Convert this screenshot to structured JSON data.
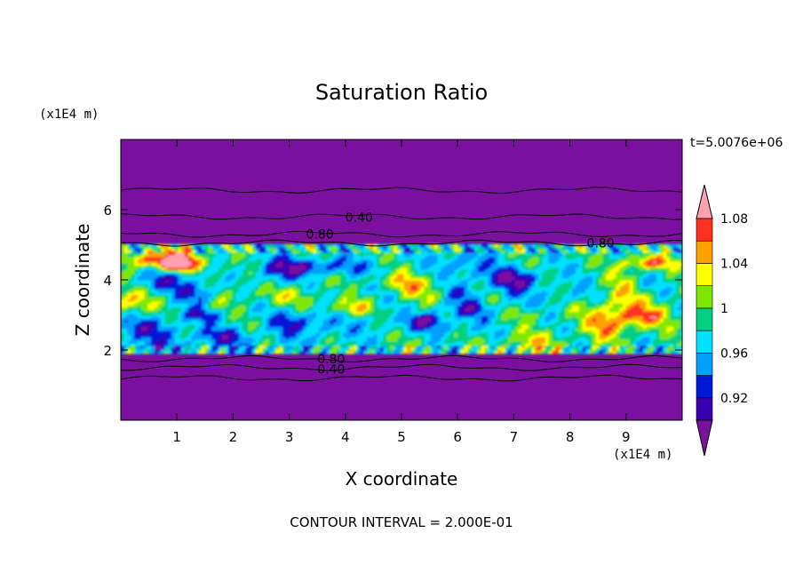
{
  "chart_data": {
    "type": "heatmap",
    "title": "Saturation Ratio",
    "xlabel": "X coordinate",
    "ylabel": "Z coordinate",
    "x_unit": "(x1E4 m)",
    "y_unit": "(x1E4 m)",
    "xlim": [
      0,
      10
    ],
    "ylim": [
      0,
      8
    ],
    "x_ticks": [
      1,
      2,
      3,
      4,
      5,
      6,
      7,
      8,
      9
    ],
    "y_ticks": [
      2,
      4,
      6
    ],
    "time_label": "t=5.0076e+06",
    "footer": "CONTOUR INTERVAL = 2.000E-01",
    "colorbar": {
      "levels": [
        0.9,
        0.92,
        0.94,
        0.96,
        0.98,
        1.0,
        1.02,
        1.04,
        1.06,
        1.08,
        1.1
      ],
      "tick_labels": [
        "0.92",
        "0.96",
        "1",
        "1.04",
        "1.08"
      ],
      "tick_values": [
        0.92,
        0.96,
        1.0,
        1.04,
        1.08
      ],
      "colors": [
        "#7b0fa0",
        "#3a00b0",
        "#0018d8",
        "#00a0ff",
        "#00e0ff",
        "#00d080",
        "#80e800",
        "#ffff00",
        "#ffa000",
        "#ff3020",
        "#ffa0b0"
      ],
      "extend": "both"
    },
    "contour_lines": [
      {
        "label": "0.40",
        "label_x": 4.0,
        "label_y": 5.78
      },
      {
        "label": "0.80",
        "label_x": 3.3,
        "label_y": 5.3
      },
      {
        "label": "0.80",
        "label_x": 8.3,
        "label_y": 5.05
      },
      {
        "label": "0.80",
        "label_x": 3.5,
        "label_y": 1.75
      },
      {
        "label": "0.40",
        "label_x": 3.5,
        "label_y": 1.45
      }
    ],
    "moist_layer_z": [
      1.9,
      5.0
    ]
  }
}
